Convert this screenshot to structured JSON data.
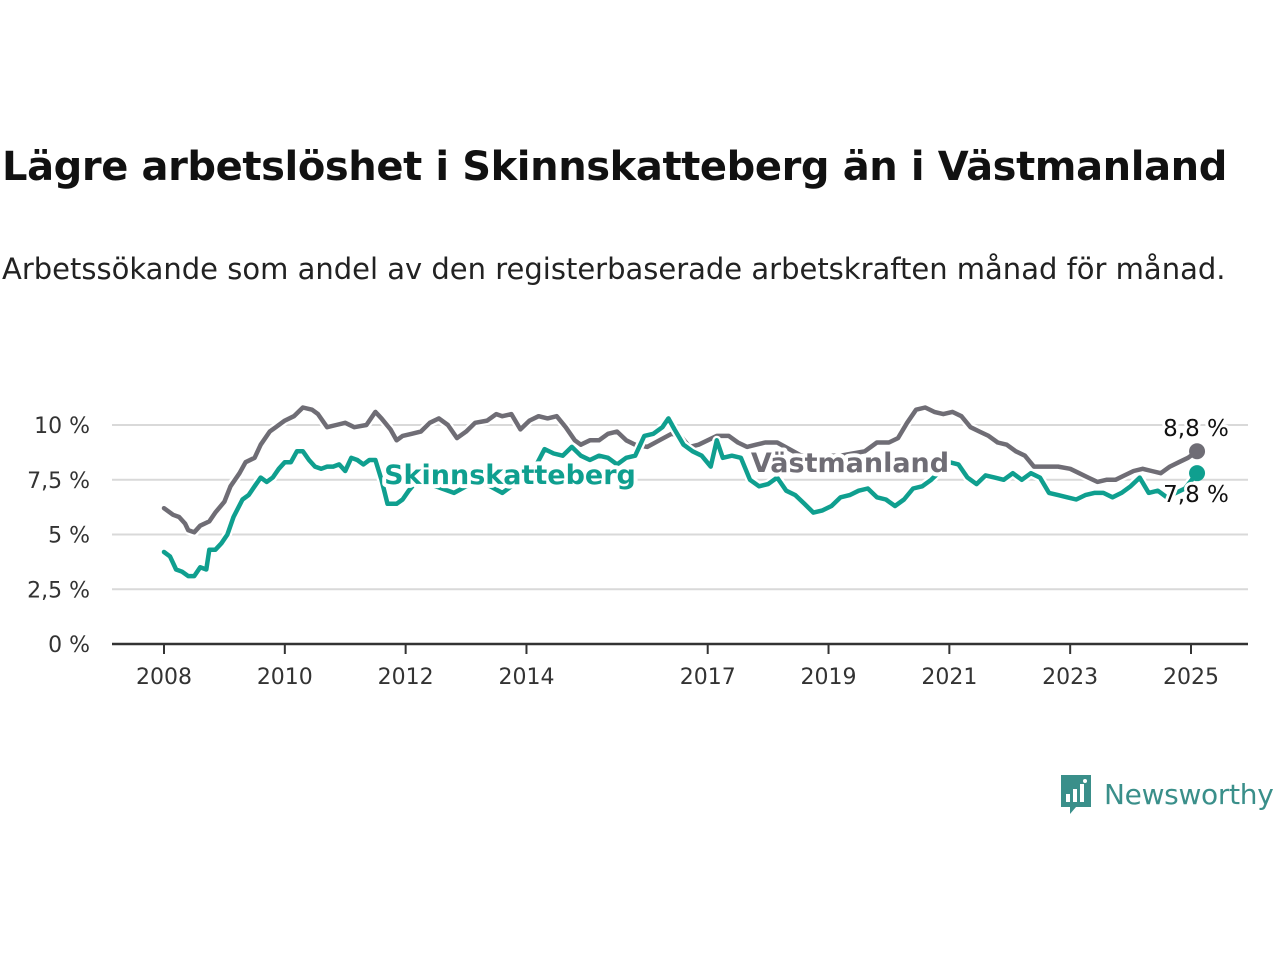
{
  "title": "Lägre arbetslöshet i Skinnskatteberg än i Västmanland",
  "subtitle": "Arbetssökande som andel av den registerbaserade arbetskraften månad för månad.",
  "brand": {
    "name": "Newsworthy",
    "color": "#3a8f8a"
  },
  "chart_data": {
    "type": "line",
    "title": "Lägre arbetslöshet i Skinnskatteberg än i Västmanland",
    "ylim": [
      0,
      10.5
    ],
    "xlim": [
      2007.8,
      2025.92
    ],
    "y_ticks": [
      {
        "value": 0,
        "label": "0 %"
      },
      {
        "value": 2.5,
        "label": "2,5 %"
      },
      {
        "value": 5,
        "label": "5 %"
      },
      {
        "value": 7.5,
        "label": "7,5 %"
      },
      {
        "value": 10,
        "label": "10 %"
      }
    ],
    "x_ticks": [
      {
        "value": 2008,
        "label": "2008"
      },
      {
        "value": 2010,
        "label": "2010"
      },
      {
        "value": 2012,
        "label": "2012"
      },
      {
        "value": 2014,
        "label": "2014"
      },
      {
        "value": 2017,
        "label": "2017"
      },
      {
        "value": 2019,
        "label": "2019"
      },
      {
        "value": 2021,
        "label": "2021"
      },
      {
        "value": 2023,
        "label": "2023"
      },
      {
        "value": 2025,
        "label": "2025"
      }
    ],
    "grid": "horizontal",
    "legend": "inline labels",
    "series": [
      {
        "name": "Västmanland",
        "color": "#6f6d75",
        "end_label": "8,8 %",
        "points": [
          [
            2008.0,
            6.2
          ],
          [
            2008.15,
            5.9
          ],
          [
            2008.25,
            5.8
          ],
          [
            2008.35,
            5.5
          ],
          [
            2008.4,
            5.2
          ],
          [
            2008.5,
            5.1
          ],
          [
            2008.6,
            5.4
          ],
          [
            2008.75,
            5.6
          ],
          [
            2008.85,
            6.0
          ],
          [
            2009.0,
            6.5
          ],
          [
            2009.1,
            7.2
          ],
          [
            2009.25,
            7.8
          ],
          [
            2009.35,
            8.3
          ],
          [
            2009.5,
            8.5
          ],
          [
            2009.6,
            9.1
          ],
          [
            2009.75,
            9.7
          ],
          [
            2009.85,
            9.9
          ],
          [
            2010.0,
            10.2
          ],
          [
            2010.15,
            10.4
          ],
          [
            2010.3,
            10.8
          ],
          [
            2010.45,
            10.7
          ],
          [
            2010.55,
            10.5
          ],
          [
            2010.7,
            9.9
          ],
          [
            2010.85,
            10.0
          ],
          [
            2011.0,
            10.1
          ],
          [
            2011.15,
            9.9
          ],
          [
            2011.35,
            10.0
          ],
          [
            2011.5,
            10.6
          ],
          [
            2011.6,
            10.3
          ],
          [
            2011.75,
            9.8
          ],
          [
            2011.85,
            9.3
          ],
          [
            2011.95,
            9.5
          ],
          [
            2012.1,
            9.6
          ],
          [
            2012.25,
            9.7
          ],
          [
            2012.4,
            10.1
          ],
          [
            2012.55,
            10.3
          ],
          [
            2012.7,
            10.0
          ],
          [
            2012.85,
            9.4
          ],
          [
            2013.0,
            9.7
          ],
          [
            2013.15,
            10.1
          ],
          [
            2013.35,
            10.2
          ],
          [
            2013.5,
            10.5
          ],
          [
            2013.6,
            10.4
          ],
          [
            2013.75,
            10.5
          ],
          [
            2013.9,
            9.8
          ],
          [
            2014.05,
            10.2
          ],
          [
            2014.2,
            10.4
          ],
          [
            2014.35,
            10.3
          ],
          [
            2014.5,
            10.4
          ],
          [
            2014.65,
            9.9
          ],
          [
            2014.8,
            9.3
          ],
          [
            2014.9,
            9.1
          ],
          [
            2015.05,
            9.3
          ],
          [
            2015.2,
            9.3
          ],
          [
            2015.35,
            9.6
          ],
          [
            2015.5,
            9.7
          ],
          [
            2015.65,
            9.3
          ],
          [
            2015.8,
            9.1
          ],
          [
            2016.0,
            9.0
          ],
          [
            2016.2,
            9.3
          ],
          [
            2016.4,
            9.6
          ],
          [
            2016.55,
            9.5
          ],
          [
            2016.7,
            9.0
          ],
          [
            2016.85,
            9.1
          ],
          [
            2017.0,
            9.3
          ],
          [
            2017.15,
            9.5
          ],
          [
            2017.35,
            9.5
          ],
          [
            2017.5,
            9.2
          ],
          [
            2017.65,
            9.0
          ],
          [
            2017.8,
            9.1
          ],
          [
            2017.95,
            9.2
          ],
          [
            2018.15,
            9.2
          ],
          [
            2018.35,
            8.9
          ],
          [
            2018.55,
            8.6
          ],
          [
            2018.8,
            8.5
          ],
          [
            2019.0,
            8.6
          ],
          [
            2019.2,
            8.6
          ],
          [
            2019.4,
            8.7
          ],
          [
            2019.6,
            8.8
          ],
          [
            2019.8,
            9.2
          ],
          [
            2020.0,
            9.2
          ],
          [
            2020.15,
            9.4
          ],
          [
            2020.3,
            10.1
          ],
          [
            2020.45,
            10.7
          ],
          [
            2020.6,
            10.8
          ],
          [
            2020.75,
            10.6
          ],
          [
            2020.9,
            10.5
          ],
          [
            2021.05,
            10.6
          ],
          [
            2021.2,
            10.4
          ],
          [
            2021.35,
            9.9
          ],
          [
            2021.5,
            9.7
          ],
          [
            2021.65,
            9.5
          ],
          [
            2021.8,
            9.2
          ],
          [
            2021.95,
            9.1
          ],
          [
            2022.1,
            8.8
          ],
          [
            2022.25,
            8.6
          ],
          [
            2022.4,
            8.1
          ],
          [
            2022.6,
            8.1
          ],
          [
            2022.8,
            8.1
          ],
          [
            2023.0,
            8.0
          ],
          [
            2023.15,
            7.8
          ],
          [
            2023.3,
            7.6
          ],
          [
            2023.45,
            7.4
          ],
          [
            2023.6,
            7.5
          ],
          [
            2023.75,
            7.5
          ],
          [
            2023.9,
            7.7
          ],
          [
            2024.05,
            7.9
          ],
          [
            2024.2,
            8.0
          ],
          [
            2024.35,
            7.9
          ],
          [
            2024.5,
            7.8
          ],
          [
            2024.65,
            8.1
          ],
          [
            2024.8,
            8.3
          ],
          [
            2024.95,
            8.5
          ],
          [
            2025.1,
            8.8
          ]
        ]
      },
      {
        "name": "Skinnskatteberg",
        "color": "#0f9f8f",
        "end_label": "7,8 %",
        "points": [
          [
            2008.0,
            4.2
          ],
          [
            2008.1,
            4.0
          ],
          [
            2008.2,
            3.4
          ],
          [
            2008.3,
            3.3
          ],
          [
            2008.4,
            3.1
          ],
          [
            2008.5,
            3.1
          ],
          [
            2008.6,
            3.5
          ],
          [
            2008.7,
            3.4
          ],
          [
            2008.75,
            4.3
          ],
          [
            2008.85,
            4.3
          ],
          [
            2008.95,
            4.6
          ],
          [
            2009.05,
            5.0
          ],
          [
            2009.15,
            5.8
          ],
          [
            2009.3,
            6.6
          ],
          [
            2009.4,
            6.8
          ],
          [
            2009.5,
            7.2
          ],
          [
            2009.6,
            7.6
          ],
          [
            2009.7,
            7.4
          ],
          [
            2009.8,
            7.6
          ],
          [
            2009.9,
            8.0
          ],
          [
            2010.0,
            8.3
          ],
          [
            2010.1,
            8.3
          ],
          [
            2010.2,
            8.8
          ],
          [
            2010.3,
            8.8
          ],
          [
            2010.4,
            8.4
          ],
          [
            2010.5,
            8.1
          ],
          [
            2010.6,
            8.0
          ],
          [
            2010.7,
            8.1
          ],
          [
            2010.8,
            8.1
          ],
          [
            2010.9,
            8.2
          ],
          [
            2011.0,
            7.9
          ],
          [
            2011.1,
            8.5
          ],
          [
            2011.2,
            8.4
          ],
          [
            2011.3,
            8.2
          ],
          [
            2011.4,
            8.4
          ],
          [
            2011.5,
            8.4
          ],
          [
            2011.6,
            7.5
          ],
          [
            2011.7,
            6.4
          ],
          [
            2011.85,
            6.4
          ],
          [
            2011.95,
            6.6
          ],
          [
            2012.05,
            7.0
          ],
          [
            2012.2,
            7.5
          ],
          [
            2012.4,
            7.3
          ],
          [
            2012.6,
            7.1
          ],
          [
            2012.8,
            6.9
          ],
          [
            2013.0,
            7.2
          ],
          [
            2013.2,
            7.4
          ],
          [
            2013.4,
            7.2
          ],
          [
            2013.6,
            6.9
          ],
          [
            2013.8,
            7.3
          ],
          [
            2014.0,
            8.0
          ],
          [
            2014.15,
            8.1
          ],
          [
            2014.3,
            8.9
          ],
          [
            2014.45,
            8.7
          ],
          [
            2014.6,
            8.6
          ],
          [
            2014.75,
            9.0
          ],
          [
            2014.9,
            8.6
          ],
          [
            2015.05,
            8.4
          ],
          [
            2015.2,
            8.6
          ],
          [
            2015.35,
            8.5
          ],
          [
            2015.5,
            8.2
          ],
          [
            2015.65,
            8.5
          ],
          [
            2015.8,
            8.6
          ],
          [
            2015.95,
            9.5
          ],
          [
            2016.1,
            9.6
          ],
          [
            2016.25,
            9.9
          ],
          [
            2016.35,
            10.3
          ],
          [
            2016.45,
            9.8
          ],
          [
            2016.6,
            9.1
          ],
          [
            2016.75,
            8.8
          ],
          [
            2016.9,
            8.6
          ],
          [
            2017.05,
            8.1
          ],
          [
            2017.15,
            9.3
          ],
          [
            2017.25,
            8.5
          ],
          [
            2017.4,
            8.6
          ],
          [
            2017.55,
            8.5
          ],
          [
            2017.7,
            7.5
          ],
          [
            2017.85,
            7.2
          ],
          [
            2018.0,
            7.3
          ],
          [
            2018.15,
            7.6
          ],
          [
            2018.3,
            7.0
          ],
          [
            2018.45,
            6.8
          ],
          [
            2018.6,
            6.4
          ],
          [
            2018.75,
            6.0
          ],
          [
            2018.9,
            6.1
          ],
          [
            2019.05,
            6.3
          ],
          [
            2019.2,
            6.7
          ],
          [
            2019.35,
            6.8
          ],
          [
            2019.5,
            7.0
          ],
          [
            2019.65,
            7.1
          ],
          [
            2019.8,
            6.7
          ],
          [
            2019.95,
            6.6
          ],
          [
            2020.1,
            6.3
          ],
          [
            2020.25,
            6.6
          ],
          [
            2020.4,
            7.1
          ],
          [
            2020.55,
            7.2
          ],
          [
            2020.7,
            7.5
          ],
          [
            2020.85,
            7.9
          ],
          [
            2021.0,
            8.3
          ],
          [
            2021.15,
            8.2
          ],
          [
            2021.3,
            7.6
          ],
          [
            2021.45,
            7.3
          ],
          [
            2021.6,
            7.7
          ],
          [
            2021.75,
            7.6
          ],
          [
            2021.9,
            7.5
          ],
          [
            2022.05,
            7.8
          ],
          [
            2022.2,
            7.5
          ],
          [
            2022.35,
            7.8
          ],
          [
            2022.5,
            7.6
          ],
          [
            2022.65,
            6.9
          ],
          [
            2022.8,
            6.8
          ],
          [
            2022.95,
            6.7
          ],
          [
            2023.1,
            6.6
          ],
          [
            2023.25,
            6.8
          ],
          [
            2023.4,
            6.9
          ],
          [
            2023.55,
            6.9
          ],
          [
            2023.7,
            6.7
          ],
          [
            2023.85,
            6.9
          ],
          [
            2024.0,
            7.2
          ],
          [
            2024.15,
            7.6
          ],
          [
            2024.3,
            6.9
          ],
          [
            2024.45,
            7.0
          ],
          [
            2024.6,
            6.7
          ],
          [
            2024.75,
            6.9
          ],
          [
            2024.9,
            7.1
          ],
          [
            2025.1,
            7.8
          ]
        ]
      }
    ]
  }
}
